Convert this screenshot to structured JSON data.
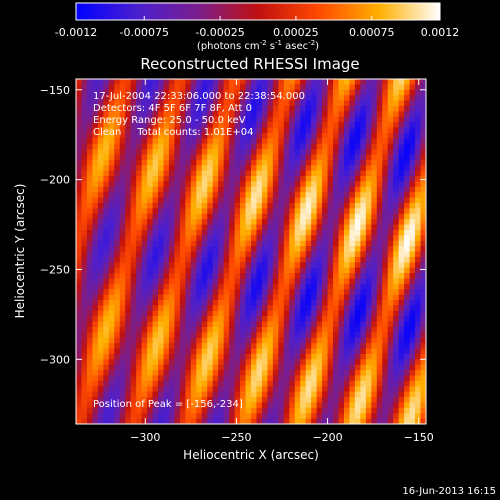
{
  "chart_data": {
    "type": "heatmap",
    "title": "Reconstructed RHESSI Image",
    "xlabel": "Heliocentric X (arcsec)",
    "ylabel": "Heliocentric Y (arcsec)",
    "xlim": [
      -338,
      -146
    ],
    "ylim": [
      -336,
      -144
    ],
    "x_ticks": [
      -300,
      -250,
      -200,
      -150
    ],
    "y_ticks": [
      -150,
      -200,
      -250,
      -300
    ],
    "colorbar": {
      "range": [
        -0.0012,
        0.0012
      ],
      "ticks": [
        "-0.0012",
        "-0.00075",
        "-0.00025",
        "0.00025",
        "0.00075",
        "0.0012"
      ],
      "label_main": "(photons cm",
      "label_exp1": "-2",
      "label_mid1": " s",
      "label_exp2": "-1",
      "label_mid2": " asec",
      "label_exp3": "-2",
      "label_end": ")"
    },
    "annotations": {
      "time": "17-Jul-2004 22:33:06.000 to 22:38:54.000",
      "detectors": "Detectors: 4F 5F 6F 7F 8F, Att 0",
      "energy": "Energy Range: 25.0 - 50.0 keV",
      "algorithm": "Clean     Total counts: 1.01E+04",
      "peak": "Position of Peak = [-156,-234]"
    },
    "peak": {
      "x": -156,
      "y": -234
    },
    "colors": {
      "colormap": [
        "#0000ff",
        "#4a1fd0",
        "#7a1e8e",
        "#c01010",
        "#ff4a00",
        "#ffb000",
        "#ffffff"
      ]
    }
  },
  "footer": {
    "date_stamp": "16-Jun-2013 16:15"
  }
}
